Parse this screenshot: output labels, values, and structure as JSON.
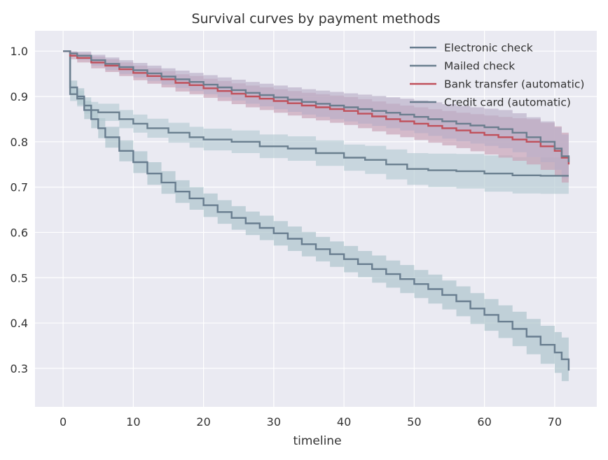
{
  "chart_data": {
    "type": "line",
    "title": "Survival curves by payment methods",
    "xlabel": "timeline",
    "ylabel": "",
    "xlim": [
      -4,
      76
    ],
    "ylim": [
      0.215,
      1.045
    ],
    "xticks": [
      0,
      10,
      20,
      30,
      40,
      50,
      60,
      70
    ],
    "xtick_labels": [
      "0",
      "10",
      "20",
      "30",
      "40",
      "50",
      "60",
      "70"
    ],
    "yticks": [
      0.3,
      0.4,
      0.5,
      0.6,
      0.7,
      0.8,
      0.9,
      1.0
    ],
    "ytick_labels": [
      "0.3",
      "0.4",
      "0.5",
      "0.6",
      "0.7",
      "0.8",
      "0.9",
      "1.0"
    ],
    "grid": true,
    "legend_position": "top-right",
    "background_color": "#eaeaf2",
    "grid_color": "#ffffff",
    "series": [
      {
        "name": "Electronic check",
        "color": "#687d8f",
        "band_color": "#a9c2c9",
        "x": [
          0,
          1,
          2,
          3,
          4,
          5,
          6,
          8,
          10,
          12,
          14,
          16,
          18,
          20,
          22,
          24,
          26,
          28,
          30,
          32,
          34,
          36,
          38,
          40,
          42,
          44,
          46,
          48,
          50,
          52,
          54,
          56,
          58,
          60,
          62,
          64,
          66,
          68,
          70,
          71,
          72
        ],
        "y": [
          1.0,
          0.92,
          0.9,
          0.87,
          0.85,
          0.83,
          0.81,
          0.78,
          0.755,
          0.73,
          0.71,
          0.69,
          0.675,
          0.66,
          0.645,
          0.632,
          0.62,
          0.61,
          0.598,
          0.586,
          0.574,
          0.563,
          0.552,
          0.541,
          0.53,
          0.519,
          0.508,
          0.497,
          0.486,
          0.475,
          0.462,
          0.448,
          0.432,
          0.418,
          0.403,
          0.387,
          0.37,
          0.352,
          0.335,
          0.32,
          0.295
        ],
        "lower": [
          1.0,
          0.905,
          0.882,
          0.85,
          0.83,
          0.808,
          0.787,
          0.757,
          0.731,
          0.705,
          0.685,
          0.665,
          0.65,
          0.634,
          0.619,
          0.606,
          0.594,
          0.583,
          0.571,
          0.559,
          0.547,
          0.536,
          0.524,
          0.512,
          0.501,
          0.489,
          0.478,
          0.466,
          0.455,
          0.443,
          0.43,
          0.415,
          0.398,
          0.383,
          0.367,
          0.349,
          0.331,
          0.31,
          0.29,
          0.272,
          0.255
        ],
        "upper": [
          1.0,
          0.935,
          0.918,
          0.89,
          0.87,
          0.852,
          0.833,
          0.803,
          0.779,
          0.755,
          0.735,
          0.715,
          0.7,
          0.686,
          0.671,
          0.658,
          0.646,
          0.637,
          0.625,
          0.613,
          0.601,
          0.59,
          0.58,
          0.57,
          0.559,
          0.549,
          0.538,
          0.528,
          0.517,
          0.507,
          0.494,
          0.481,
          0.466,
          0.453,
          0.439,
          0.425,
          0.409,
          0.394,
          0.38,
          0.368,
          0.335
        ]
      },
      {
        "name": "Mailed check",
        "color": "#6a7f8f",
        "band_color": "#b6cbd2",
        "x": [
          0,
          1,
          2,
          3,
          4,
          5,
          8,
          10,
          12,
          15,
          18,
          20,
          24,
          28,
          32,
          36,
          40,
          43,
          46,
          49,
          52,
          56,
          60,
          64,
          68,
          72
        ],
        "y": [
          1.0,
          0.905,
          0.895,
          0.88,
          0.87,
          0.865,
          0.85,
          0.84,
          0.83,
          0.82,
          0.81,
          0.805,
          0.8,
          0.79,
          0.785,
          0.775,
          0.765,
          0.76,
          0.75,
          0.74,
          0.737,
          0.735,
          0.73,
          0.726,
          0.725,
          0.725
        ],
        "lower": [
          1.0,
          0.89,
          0.878,
          0.862,
          0.852,
          0.846,
          0.83,
          0.82,
          0.809,
          0.798,
          0.787,
          0.781,
          0.775,
          0.764,
          0.758,
          0.747,
          0.736,
          0.729,
          0.717,
          0.705,
          0.7,
          0.697,
          0.69,
          0.686,
          0.685,
          0.685
        ],
        "upper": [
          1.0,
          0.92,
          0.912,
          0.898,
          0.888,
          0.884,
          0.87,
          0.86,
          0.851,
          0.842,
          0.833,
          0.829,
          0.825,
          0.816,
          0.812,
          0.803,
          0.794,
          0.791,
          0.783,
          0.775,
          0.774,
          0.773,
          0.77,
          0.766,
          0.765,
          0.765
        ]
      },
      {
        "name": "Bank transfer (automatic)",
        "color": "#c0505b",
        "band_color": "#c8a0b3",
        "x": [
          0,
          1,
          2,
          4,
          6,
          8,
          10,
          12,
          14,
          16,
          18,
          20,
          22,
          24,
          26,
          28,
          30,
          32,
          34,
          36,
          38,
          40,
          42,
          44,
          46,
          48,
          50,
          52,
          54,
          56,
          58,
          60,
          62,
          64,
          66,
          68,
          70,
          71,
          72
        ],
        "y": [
          1.0,
          0.99,
          0.985,
          0.975,
          0.968,
          0.96,
          0.952,
          0.945,
          0.938,
          0.93,
          0.925,
          0.918,
          0.912,
          0.906,
          0.9,
          0.895,
          0.89,
          0.885,
          0.88,
          0.876,
          0.872,
          0.868,
          0.862,
          0.856,
          0.85,
          0.845,
          0.84,
          0.835,
          0.83,
          0.825,
          0.82,
          0.815,
          0.81,
          0.805,
          0.8,
          0.79,
          0.78,
          0.765,
          0.75
        ],
        "lower": [
          1.0,
          0.982,
          0.975,
          0.962,
          0.954,
          0.945,
          0.936,
          0.928,
          0.92,
          0.911,
          0.905,
          0.897,
          0.89,
          0.883,
          0.876,
          0.87,
          0.864,
          0.858,
          0.852,
          0.847,
          0.842,
          0.837,
          0.83,
          0.823,
          0.816,
          0.81,
          0.804,
          0.798,
          0.792,
          0.786,
          0.779,
          0.772,
          0.765,
          0.758,
          0.75,
          0.738,
          0.726,
          0.71,
          0.695
        ],
        "upper": [
          1.0,
          0.998,
          0.995,
          0.988,
          0.982,
          0.975,
          0.968,
          0.962,
          0.956,
          0.949,
          0.945,
          0.939,
          0.934,
          0.929,
          0.924,
          0.92,
          0.916,
          0.912,
          0.908,
          0.905,
          0.902,
          0.899,
          0.894,
          0.889,
          0.884,
          0.88,
          0.876,
          0.872,
          0.868,
          0.864,
          0.861,
          0.858,
          0.855,
          0.852,
          0.85,
          0.842,
          0.834,
          0.82,
          0.805
        ]
      },
      {
        "name": "Credit card (automatic)",
        "color": "#6b7d8e",
        "band_color": "#b9aec6",
        "x": [
          0,
          1,
          2,
          4,
          6,
          8,
          10,
          12,
          14,
          16,
          18,
          20,
          22,
          24,
          26,
          28,
          30,
          32,
          34,
          36,
          38,
          40,
          42,
          44,
          46,
          48,
          50,
          52,
          54,
          56,
          58,
          60,
          62,
          64,
          66,
          68,
          70,
          71,
          72
        ],
        "y": [
          1.0,
          0.995,
          0.99,
          0.98,
          0.972,
          0.965,
          0.958,
          0.951,
          0.944,
          0.938,
          0.932,
          0.926,
          0.92,
          0.914,
          0.908,
          0.903,
          0.898,
          0.893,
          0.888,
          0.884,
          0.88,
          0.876,
          0.872,
          0.868,
          0.864,
          0.86,
          0.855,
          0.85,
          0.845,
          0.84,
          0.836,
          0.832,
          0.828,
          0.82,
          0.81,
          0.8,
          0.785,
          0.768,
          0.755
        ],
        "lower": [
          1.0,
          0.988,
          0.981,
          0.968,
          0.958,
          0.95,
          0.942,
          0.934,
          0.926,
          0.919,
          0.912,
          0.905,
          0.898,
          0.891,
          0.884,
          0.878,
          0.872,
          0.866,
          0.86,
          0.855,
          0.85,
          0.845,
          0.84,
          0.835,
          0.83,
          0.825,
          0.819,
          0.813,
          0.807,
          0.801,
          0.796,
          0.791,
          0.786,
          0.777,
          0.766,
          0.755,
          0.738,
          0.72,
          0.706
        ],
        "upper": [
          1.0,
          1.0,
          0.999,
          0.992,
          0.986,
          0.98,
          0.974,
          0.968,
          0.962,
          0.957,
          0.952,
          0.947,
          0.942,
          0.937,
          0.932,
          0.928,
          0.924,
          0.92,
          0.916,
          0.913,
          0.91,
          0.907,
          0.904,
          0.901,
          0.898,
          0.895,
          0.891,
          0.887,
          0.883,
          0.879,
          0.876,
          0.873,
          0.87,
          0.863,
          0.854,
          0.845,
          0.832,
          0.816,
          0.804
        ]
      }
    ]
  }
}
